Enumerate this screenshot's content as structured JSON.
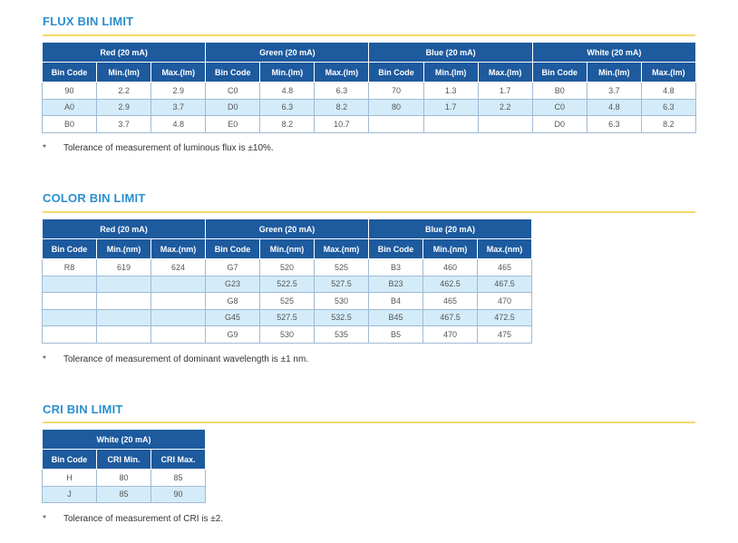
{
  "flux": {
    "title": "FLUX BIN LIMIT",
    "groups": [
      "Red (20 mA)",
      "Green (20 mA)",
      "Blue (20 mA)",
      "White (20 mA)"
    ],
    "headers": [
      "Bin Code",
      "Min.(lm)",
      "Max.(lm)"
    ],
    "rows": [
      [
        "90",
        "2.2",
        "2.9",
        "C0",
        "4.8",
        "6.3",
        "70",
        "1.3",
        "1.7",
        "B0",
        "3.7",
        "4.8"
      ],
      [
        "A0",
        "2.9",
        "3.7",
        "D0",
        "6.3",
        "8.2",
        "80",
        "1.7",
        "2.2",
        "C0",
        "4.8",
        "6.3"
      ],
      [
        "B0",
        "3.7",
        "4.8",
        "E0",
        "8.2",
        "10.7",
        "",
        "",
        "",
        "D0",
        "6.3",
        "8.2"
      ]
    ],
    "note_mark": "*",
    "note": "Tolerance of measurement of luminous flux is ±10%."
  },
  "color": {
    "title": "COLOR BIN LIMIT",
    "groups": [
      "Red (20 mA)",
      "Green (20 mA)",
      "Blue (20 mA)"
    ],
    "headers": [
      "Bin Code",
      "Min.(nm)",
      "Max.(nm)"
    ],
    "rows": [
      [
        "R8",
        "619",
        "624",
        "G7",
        "520",
        "525",
        "B3",
        "460",
        "465"
      ],
      [
        "",
        "",
        "",
        "G23",
        "522.5",
        "527.5",
        "B23",
        "462.5",
        "467.5"
      ],
      [
        "",
        "",
        "",
        "G8",
        "525",
        "530",
        "B4",
        "465",
        "470"
      ],
      [
        "",
        "",
        "",
        "G45",
        "527.5",
        "532.5",
        "B45",
        "467.5",
        "472.5"
      ],
      [
        "",
        "",
        "",
        "G9",
        "530",
        "535",
        "B5",
        "470",
        "475"
      ]
    ],
    "note_mark": "*",
    "note": "Tolerance of measurement of dominant wavelength is ±1 nm."
  },
  "cri": {
    "title": "CRI BIN LIMIT",
    "groups": [
      "White (20 mA)"
    ],
    "headers": [
      "Bin Code",
      "CRI Min.",
      "CRI Max."
    ],
    "rows": [
      [
        "H",
        "80",
        "85"
      ],
      [
        "J",
        "85",
        "90"
      ]
    ],
    "note_mark": "*",
    "note": "Tolerance of measurement of CRI is ±2."
  }
}
